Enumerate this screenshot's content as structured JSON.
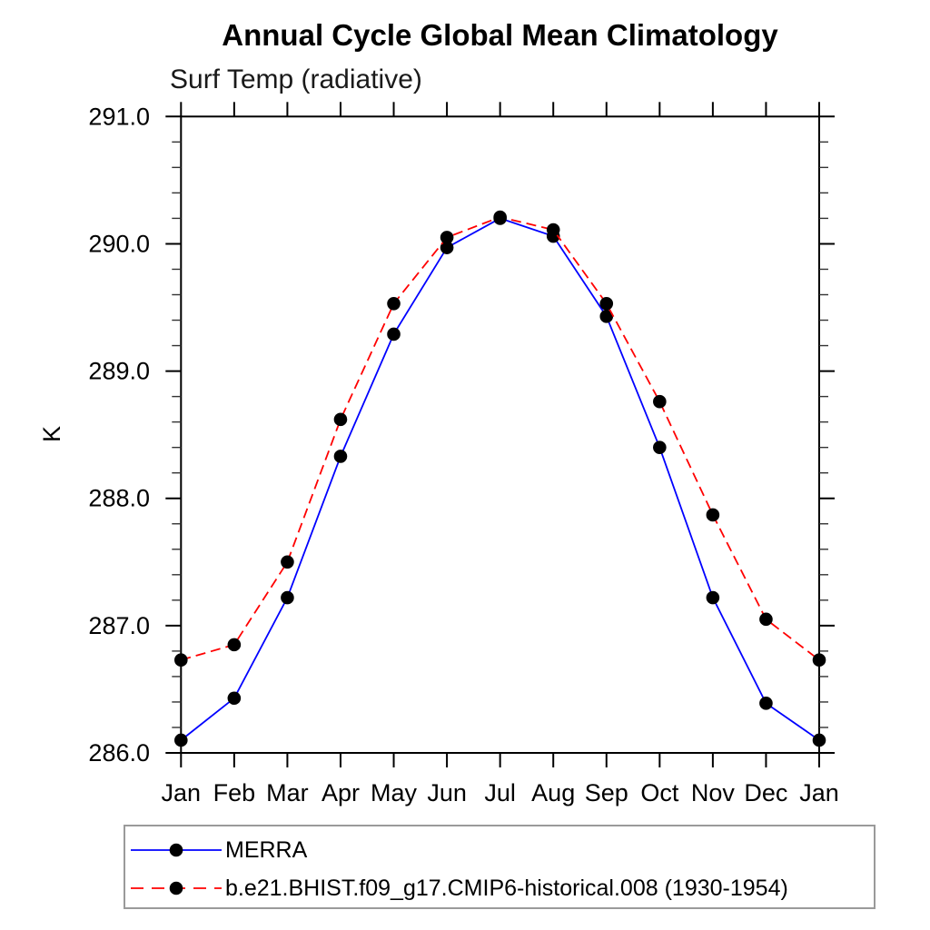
{
  "title": "Annual Cycle Global Mean Climatology",
  "subtitle": "Surf Temp (radiative)",
  "y_axis": {
    "label": "K",
    "tick_labels": [
      "286.0",
      "287.0",
      "288.0",
      "289.0",
      "290.0",
      "291.0"
    ]
  },
  "x_axis": {
    "tick_labels": [
      "Jan",
      "Feb",
      "Mar",
      "Apr",
      "May",
      "Jun",
      "Jul",
      "Aug",
      "Sep",
      "Oct",
      "Nov",
      "Dec",
      "Jan"
    ]
  },
  "colors": {
    "axis": "#000000",
    "marker": "#000000",
    "merra_line": "#0000ff",
    "model_line": "#ff0000",
    "legend_border": "#9a9a9a",
    "text": "#000000"
  },
  "legend": {
    "entries": [
      "MERRA",
      "b.e21.BHIST.f09_g17.CMIP6-historical.008 (1930-1954)"
    ]
  },
  "chart_data": {
    "type": "line",
    "title": "Annual Cycle Global Mean Climatology",
    "subtitle": "Surf Temp (radiative)",
    "xlabel": "",
    "ylabel": "K",
    "categories": [
      "Jan",
      "Feb",
      "Mar",
      "Apr",
      "May",
      "Jun",
      "Jul",
      "Aug",
      "Sep",
      "Oct",
      "Nov",
      "Dec",
      "Jan"
    ],
    "series": [
      {
        "id": "merra",
        "name": "MERRA",
        "color": "#0000ff",
        "line_style": "solid",
        "marker": "filled-circle",
        "marker_color": "#000000",
        "values": [
          286.1,
          286.43,
          287.22,
          288.33,
          289.29,
          289.97,
          290.2,
          290.06,
          289.43,
          288.4,
          287.22,
          286.39,
          286.1
        ]
      },
      {
        "id": "model",
        "name": "b.e21.BHIST.f09_g17.CMIP6-historical.008 (1930-1954)",
        "color": "#ff0000",
        "line_style": "dashed",
        "marker": "filled-circle",
        "marker_color": "#000000",
        "values": [
          286.73,
          286.85,
          287.5,
          288.62,
          289.53,
          290.05,
          290.21,
          290.11,
          289.53,
          288.76,
          287.87,
          287.05,
          286.73
        ]
      }
    ],
    "ylim": [
      286.0,
      291.0
    ],
    "y_major_step": 1.0,
    "y_minor_step": 0.2,
    "grid": false,
    "ticks": "outward-all-sides",
    "legend_position": "bottom-left"
  }
}
